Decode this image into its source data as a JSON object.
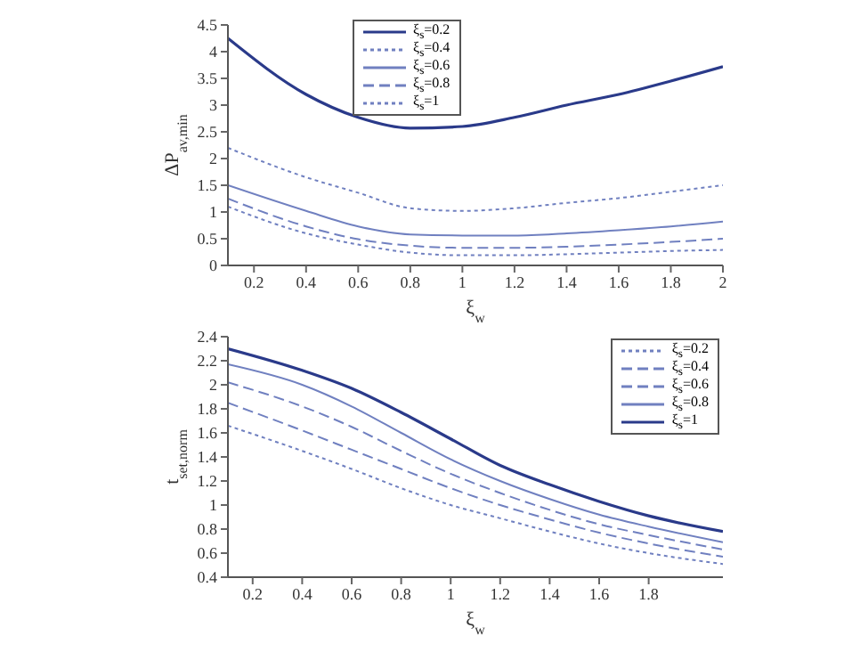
{
  "chart_data": [
    {
      "type": "line",
      "xlabel": "ξ$_{w}$",
      "ylabel": "ΔP$_{av,min}$",
      "x": [
        0.1,
        0.4,
        0.6,
        0.8,
        1.0,
        1.2,
        1.4,
        1.6,
        1.8,
        2.0
      ],
      "xlim": [
        0.1,
        2
      ],
      "xticks": [
        0.2,
        0.4,
        0.6,
        0.8,
        1,
        1.2,
        1.4,
        1.6,
        1.8,
        2
      ],
      "ylim": [
        0,
        4.5
      ],
      "yticks": [
        0,
        0.5,
        1,
        1.5,
        2,
        2.5,
        3,
        3.5,
        4,
        4.5
      ],
      "legend": "top left",
      "grid": false,
      "series": [
        {
          "name": "ξ$_{s}$=0.2",
          "color": "#2a3a8a",
          "line_style": "solid",
          "values": [
            4.25,
            3.2,
            2.77,
            2.57,
            2.6,
            2.77,
            3.0,
            3.2,
            3.45,
            3.72
          ]
        },
        {
          "name": "ξ$_{s}$=0.4",
          "color": "#7080c0",
          "line_style": "dotted",
          "values": [
            2.2,
            1.65,
            1.36,
            1.07,
            1.02,
            1.07,
            1.17,
            1.26,
            1.38,
            1.5
          ]
        },
        {
          "name": "ξ$_{s}$=0.6",
          "color": "#7080c0",
          "line_style": "solid",
          "values": [
            1.5,
            1.02,
            0.73,
            0.58,
            0.56,
            0.56,
            0.6,
            0.66,
            0.73,
            0.82
          ]
        },
        {
          "name": "ξ$_{s}$=0.8",
          "color": "#7080c0",
          "line_style": "dashed",
          "values": [
            1.25,
            0.73,
            0.49,
            0.37,
            0.33,
            0.33,
            0.35,
            0.39,
            0.44,
            0.5
          ]
        },
        {
          "name": "ξ$_{s}$=1",
          "color": "#7080c0",
          "line_style": "dotted",
          "values": [
            1.1,
            0.6,
            0.39,
            0.24,
            0.19,
            0.19,
            0.21,
            0.24,
            0.27,
            0.29
          ]
        }
      ]
    },
    {
      "type": "line",
      "xlabel": "ξ$_{w}$",
      "ylabel": "t$_{set,norm}$",
      "x": [
        0.1,
        0.4,
        0.6,
        0.8,
        1.0,
        1.2,
        1.4,
        1.6,
        1.8,
        2.1
      ],
      "xlim": [
        0.1,
        2.1
      ],
      "xticks": [
        0.2,
        0.4,
        0.6,
        0.8,
        1,
        1.2,
        1.4,
        1.6,
        1.8
      ],
      "ylim": [
        0.4,
        2.4
      ],
      "yticks": [
        0.4,
        0.6,
        0.8,
        1,
        1.2,
        1.4,
        1.6,
        1.8,
        2,
        2.2,
        2.4
      ],
      "legend": "top right",
      "grid": false,
      "series": [
        {
          "name": "ξ$_{s}$=0.2",
          "color": "#7080c0",
          "line_style": "dotted",
          "values": [
            1.66,
            1.45,
            1.3,
            1.14,
            1.0,
            0.89,
            0.78,
            0.68,
            0.6,
            0.51
          ]
        },
        {
          "name": "ξ$_{s}$=0.4",
          "color": "#7080c0",
          "line_style": "dashed",
          "values": [
            1.85,
            1.62,
            1.46,
            1.3,
            1.14,
            1.0,
            0.88,
            0.77,
            0.68,
            0.57
          ]
        },
        {
          "name": "ξ$_{s}$=0.6",
          "color": "#7080c0",
          "line_style": "dashed",
          "values": [
            2.02,
            1.82,
            1.65,
            1.45,
            1.26,
            1.1,
            0.96,
            0.84,
            0.75,
            0.63
          ]
        },
        {
          "name": "ξ$_{s}$=0.8",
          "color": "#7080c0",
          "line_style": "solid",
          "values": [
            2.17,
            2.0,
            1.82,
            1.6,
            1.38,
            1.2,
            1.05,
            0.92,
            0.82,
            0.69
          ]
        },
        {
          "name": "ξ$_{s}$=1",
          "color": "#2a3a8a",
          "line_style": "solid",
          "values": [
            2.3,
            2.12,
            1.97,
            1.77,
            1.55,
            1.33,
            1.17,
            1.03,
            0.91,
            0.78
          ]
        }
      ]
    }
  ]
}
